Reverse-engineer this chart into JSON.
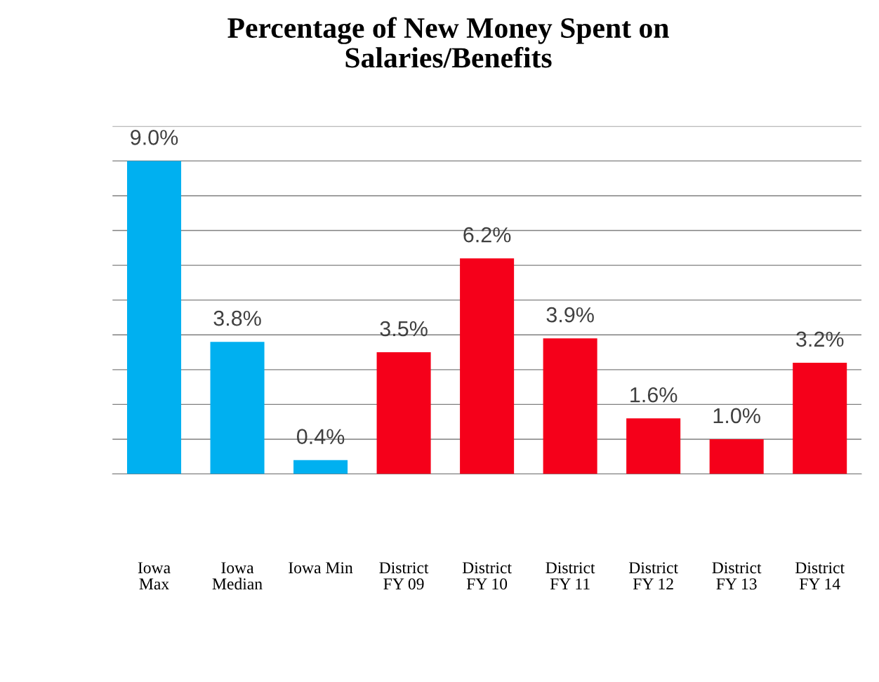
{
  "chart_data": {
    "type": "bar",
    "title": "Percentage of New Money Spent on\nSalaries/Benefits",
    "categories": [
      "Iowa\nMax",
      "Iowa\nMedian",
      "Iowa Min",
      "District\nFY 09",
      "District\nFY 10",
      "District\nFY 11",
      "District\nFY 12",
      "District\nFY 13",
      "District\nFY 14"
    ],
    "values": [
      9.0,
      3.8,
      0.4,
      3.5,
      6.2,
      3.9,
      1.6,
      1.0,
      3.2
    ],
    "colors": [
      "#00b0f0",
      "#00b0f0",
      "#00b0f0",
      "#f5001a",
      "#f5001a",
      "#f5001a",
      "#f5001a",
      "#f5001a",
      "#f5001a"
    ],
    "value_labels": [
      "9.0%",
      "3.8%",
      "0.4%",
      "3.5%",
      "6.2%",
      "3.9%",
      "1.6%",
      "1.0%",
      "3.2%"
    ],
    "ylim": [
      0,
      10
    ],
    "yticks": [
      {
        "value": 0,
        "label": null
      },
      {
        "value": 1,
        "label": null
      },
      {
        "value": 2,
        "label": null
      },
      {
        "value": 3,
        "label": null
      },
      {
        "value": 4,
        "label": null
      },
      {
        "value": 5,
        "label": null
      },
      {
        "value": 6,
        "label": null
      },
      {
        "value": 7,
        "label": null
      },
      {
        "value": 8,
        "label": null
      },
      {
        "value": 9,
        "label": null
      },
      {
        "value": 10,
        "label": null
      }
    ],
    "grid": "y",
    "legend": false
  }
}
